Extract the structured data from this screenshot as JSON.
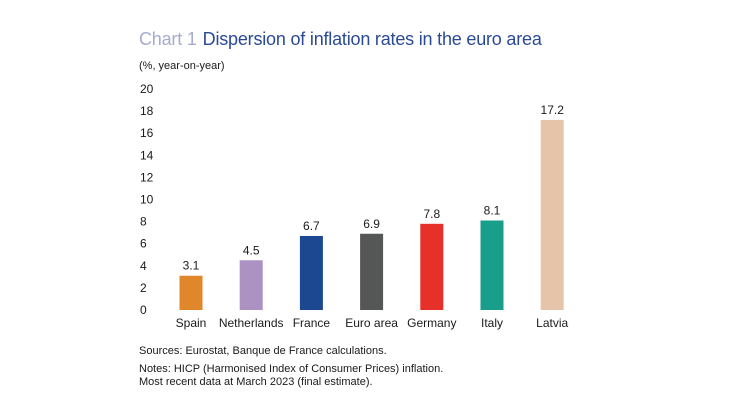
{
  "chart_data": {
    "type": "bar",
    "title_prefix": "Chart 1",
    "title": "Dispersion of inflation rates in the euro area",
    "ylabel": "(%, year-on-year)",
    "categories": [
      "Spain",
      "Netherlands",
      "France",
      "Euro area",
      "Germany",
      "Italy",
      "Latvia"
    ],
    "values": [
      3.1,
      4.5,
      6.7,
      6.9,
      7.8,
      8.1,
      17.2
    ],
    "data_labels": [
      "3.1",
      "",
      "6.7",
      "6.9",
      "7.8",
      "8.1",
      "17.2"
    ],
    "netherlands_label": "4.5",
    "colors": [
      "#e0862b",
      "#ab92c3",
      "#1c4791",
      "#555656",
      "#e8302a",
      "#1a9e8c",
      "#e6c4a9"
    ],
    "ylim": [
      0,
      20
    ],
    "yticks": [
      0,
      2,
      4,
      6,
      8,
      10,
      12,
      14,
      16,
      18,
      20
    ],
    "grid": false,
    "legend": "none"
  },
  "footer": {
    "sources": "Sources: Eurostat, Banque de France calculations.",
    "notes_line1": "Notes: HICP (Harmonised Index of Consumer Prices) inflation.",
    "notes_line2": "Most recent data at March 2023 (final estimate)."
  }
}
